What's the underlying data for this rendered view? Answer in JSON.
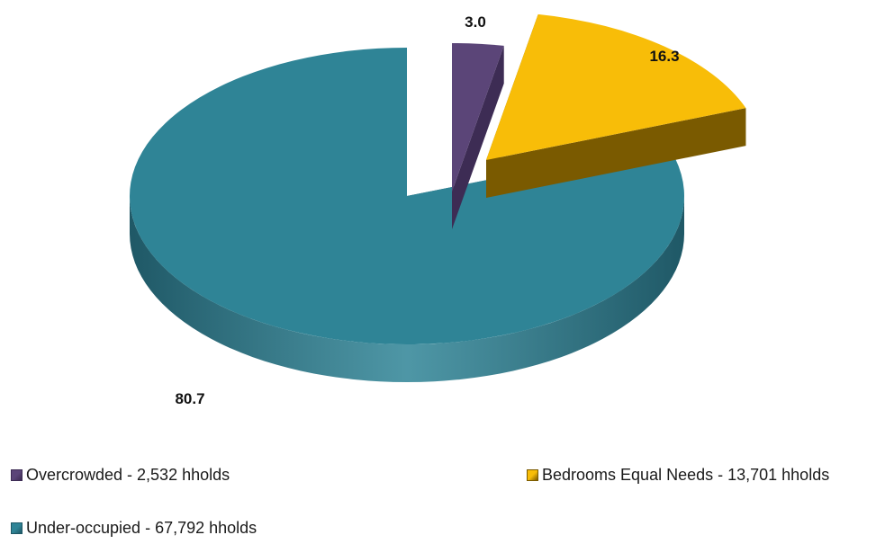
{
  "chart_data": {
    "type": "pie",
    "style": "3d-exploded",
    "legend_position": "bottom",
    "slices": [
      {
        "legend": "Overcrowded - 2,532 hholds",
        "value": 3.0,
        "label": "3.0",
        "color": "#5b4578",
        "side_color": "#3d2c54"
      },
      {
        "legend": "Bedrooms Equal Needs - 13,701 hholds",
        "value": 16.3,
        "label": "16.3",
        "color": "#f8bd08",
        "side_color": "#7a5a00"
      },
      {
        "legend": "Under-occupied - 67,792 hholds",
        "value": 80.7,
        "label": "80.7",
        "color": "#2f8496",
        "side_color": "#1f5866"
      }
    ]
  }
}
